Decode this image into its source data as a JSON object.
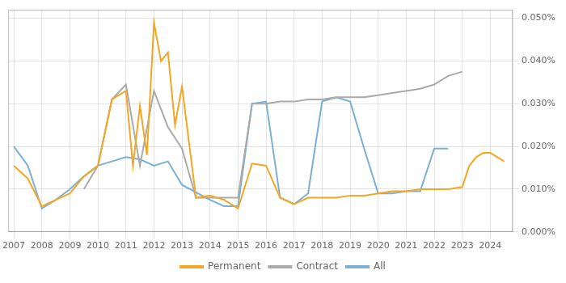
{
  "chart_data": {
    "type": "line",
    "series": [
      {
        "name": "Permanent",
        "color": "#f5a623",
        "x": [
          2007,
          2007.5,
          2008,
          2008.5,
          2009,
          2009.5,
          2010,
          2010.5,
          2011,
          2011.25,
          2011.5,
          2011.75,
          2012,
          2012.25,
          2012.5,
          2012.75,
          2013,
          2013.5,
          2014,
          2014.5,
          2015,
          2015.5,
          2016,
          2016.5,
          2017,
          2017.5,
          2018,
          2018.5,
          2019,
          2019.5,
          2020,
          2020.5,
          2021,
          2021.5,
          2022,
          2022.5,
          2023,
          2023.25,
          2023.5,
          2023.75,
          2024,
          2024.5
        ],
        "values": [
          0.000155,
          0.000125,
          6e-05,
          7.5e-05,
          9e-05,
          0.00013,
          0.000155,
          0.00031,
          0.00033,
          0.000155,
          0.000295,
          0.00018,
          0.00049,
          0.0004,
          0.00042,
          0.00025,
          0.00034,
          8e-05,
          8.5e-05,
          7.5e-05,
          5.5e-05,
          0.00016,
          0.000155,
          8e-05,
          6.5e-05,
          8e-05,
          8e-05,
          8e-05,
          8.5e-05,
          8.5e-05,
          9e-05,
          9.5e-05,
          9.5e-05,
          0.0001,
          0.0001,
          0.0001,
          0.000105,
          0.000155,
          0.000175,
          0.000185,
          0.000185,
          0.000165
        ]
      },
      {
        "name": "Contract",
        "color": "#aaaaaa",
        "x": [
          2009.5,
          2010,
          2010.5,
          2011,
          2011.5,
          2012,
          2012.5,
          2013,
          2013.5,
          2014,
          2014.5,
          2015,
          2015.5,
          2016,
          2016.5,
          2017,
          2017.5,
          2018,
          2018.5,
          2019,
          2019.5,
          2020,
          2020.5,
          2021,
          2021.5,
          2022,
          2022.5,
          2023
        ],
        "values": [
          0.0001,
          0.000155,
          0.00031,
          0.000345,
          0.000155,
          0.00033,
          0.000245,
          0.000195,
          8e-05,
          8e-05,
          8e-05,
          8e-05,
          0.0003,
          0.0003,
          0.000305,
          0.000305,
          0.00031,
          0.00031,
          0.000315,
          0.000315,
          0.000315,
          0.00032,
          0.000325,
          0.00033,
          0.000335,
          0.000345,
          0.000365,
          0.000375
        ]
      },
      {
        "name": "All",
        "color": "#7ab0d4",
        "x": [
          2007,
          2007.5,
          2008,
          2008.5,
          2009,
          2009.5,
          2010,
          2010.5,
          2011,
          2011.5,
          2012,
          2012.5,
          2013,
          2014,
          2014.5,
          2015,
          2015.5,
          2016,
          2016.5,
          2017,
          2017.5,
          2018,
          2018.5,
          2019,
          2019.5,
          2020,
          2020.5,
          2021,
          2021.5,
          2022,
          2022.5
        ],
        "values": [
          0.0002,
          0.000155,
          5.5e-05,
          7.5e-05,
          0.0001,
          0.00013,
          0.000155,
          0.000165,
          0.000175,
          0.00017,
          0.000155,
          0.000165,
          0.00011,
          7.5e-05,
          6e-05,
          6e-05,
          0.0003,
          0.000305,
          8e-05,
          6.5e-05,
          9e-05,
          0.000305,
          0.000315,
          0.000305,
          0.000195,
          9e-05,
          9e-05,
          9.5e-05,
          9.5e-05,
          0.000195,
          0.000195
        ]
      }
    ],
    "xlim": [
      2006.8,
      2024.8
    ],
    "xticks": [
      2007,
      2008,
      2009,
      2010,
      2011,
      2012,
      2013,
      2014,
      2015,
      2016,
      2017,
      2018,
      2019,
      2020,
      2021,
      2022,
      2023,
      2024
    ],
    "ylim": [
      0.0,
      0.00052
    ],
    "yticks": [
      {
        "value": 0.0,
        "label": "0.000%"
      },
      {
        "value": 0.0001,
        "label": "0.010%"
      },
      {
        "value": 0.0002,
        "label": "0.020%"
      },
      {
        "value": 0.0003,
        "label": "0.030%"
      },
      {
        "value": 0.0004,
        "label": "0.040%"
      },
      {
        "value": 0.0005,
        "label": "0.050%"
      }
    ],
    "grid": true,
    "legend": "bottom"
  }
}
